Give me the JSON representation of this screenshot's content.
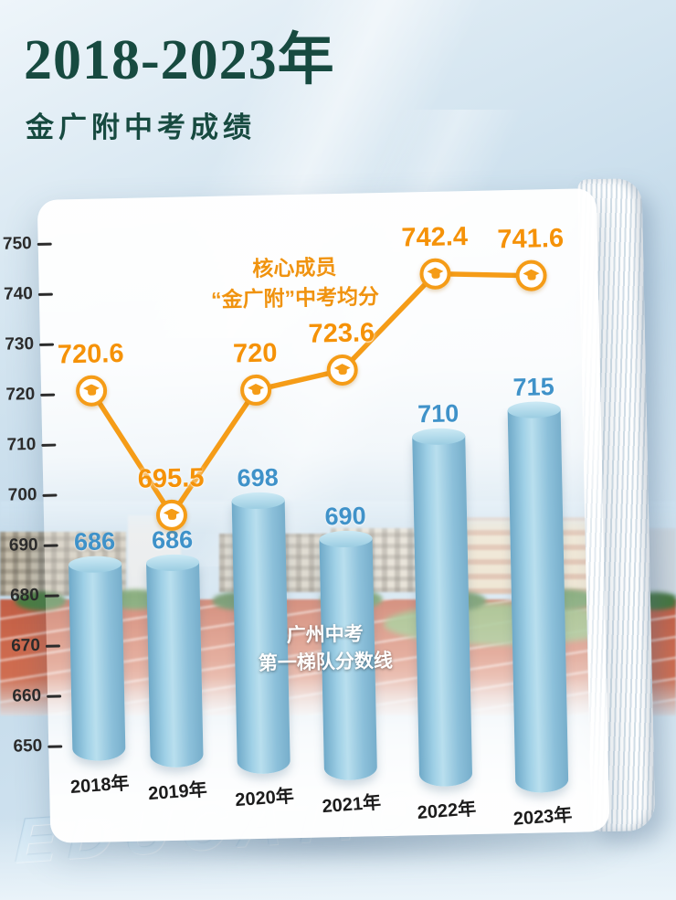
{
  "header": {
    "title": "2018-2023年",
    "subtitle": "金广附中考成绩"
  },
  "footer": {
    "watermark": "EDUCATION"
  },
  "colors": {
    "title_green": "#174a40",
    "line_orange": "#f59c17",
    "bar_blue": "#8ec3dc",
    "bar_label_blue": "#3f92c9",
    "axis_dark": "#2b2b2b"
  },
  "chart_data": {
    "type": "bar",
    "subtype": "bar+line combo",
    "title": "2018-2023年金广附中考成绩",
    "categories": [
      "2018年",
      "2019年",
      "2020年",
      "2021年",
      "2022年",
      "2023年"
    ],
    "series": [
      {
        "name": "核心成员“金广附”中考均分",
        "type": "line",
        "color": "#f59c17",
        "values": [
          720.6,
          695.5,
          720,
          723.6,
          742.4,
          741.6
        ]
      },
      {
        "name": "广州中考第一梯队分数线",
        "type": "bar",
        "color": "#8ec3dc",
        "values": [
          686,
          686,
          698,
          690,
          710,
          715
        ]
      }
    ],
    "ylim": [
      650,
      750
    ],
    "yticks": [
      750,
      740,
      730,
      720,
      710,
      700,
      690,
      680,
      670,
      660,
      650
    ],
    "grid": false,
    "legend_position": "inline annotations",
    "annotations": [
      {
        "text_lines": [
          "核心成员",
          "“金广附”中考均分"
        ],
        "color": "#f0930f",
        "refers_to": "line series"
      },
      {
        "text_lines": [
          "广州中考",
          "第一梯队分数线"
        ],
        "color": "#ffffff",
        "refers_to": "bar series"
      }
    ]
  }
}
